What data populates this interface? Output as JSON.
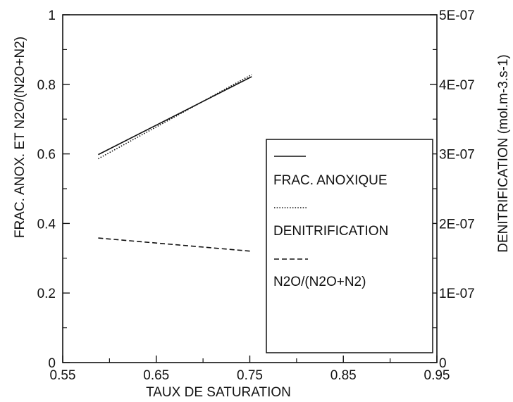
{
  "chart_data": {
    "type": "line",
    "xlabel": "TAUX DE SATURATION",
    "ylabel_left": "FRAC. ANOX. ET N2O/(N2O+N2)",
    "ylabel_right": "DENITRIFICATION (mol.m-3.s-1)",
    "xlim": [
      0.55,
      0.95
    ],
    "ylim_left": [
      0,
      1
    ],
    "ylim_right": [
      0,
      5e-07
    ],
    "x_ticks": [
      0.55,
      0.65,
      0.75,
      0.85,
      0.95
    ],
    "x_tick_labels": [
      "0.55",
      "0.65",
      "0.75",
      "0.85",
      "0.95"
    ],
    "y_left_ticks": [
      0,
      0.2,
      0.4,
      0.6,
      0.8,
      1
    ],
    "y_left_tick_labels": [
      "0",
      "0.2",
      "0.4",
      "0.6",
      "0.8",
      "1"
    ],
    "y_right_ticks": [
      0,
      1e-07,
      2e-07,
      3e-07,
      4e-07,
      5e-07
    ],
    "y_right_tick_labels": [
      "0",
      "1E-07",
      "2E-07",
      "3E-07",
      "4E-07",
      "5E-07"
    ],
    "grid": false,
    "legend_position": "right",
    "series": [
      {
        "name": "FRAC. ANOXIQUE",
        "axis": "left",
        "style": "solid",
        "x": [
          0.588,
          0.752
        ],
        "y": [
          0.598,
          0.822
        ]
      },
      {
        "name": "DENITRIFICATION",
        "axis": "right",
        "style": "dotted",
        "x": [
          0.588,
          0.752
        ],
        "y": [
          2.93e-07,
          4.14e-07
        ]
      },
      {
        "name": "N2O/(N2O+N2)",
        "axis": "left",
        "style": "dashed",
        "x": [
          0.588,
          0.752
        ],
        "y": [
          0.358,
          0.32
        ]
      }
    ]
  }
}
